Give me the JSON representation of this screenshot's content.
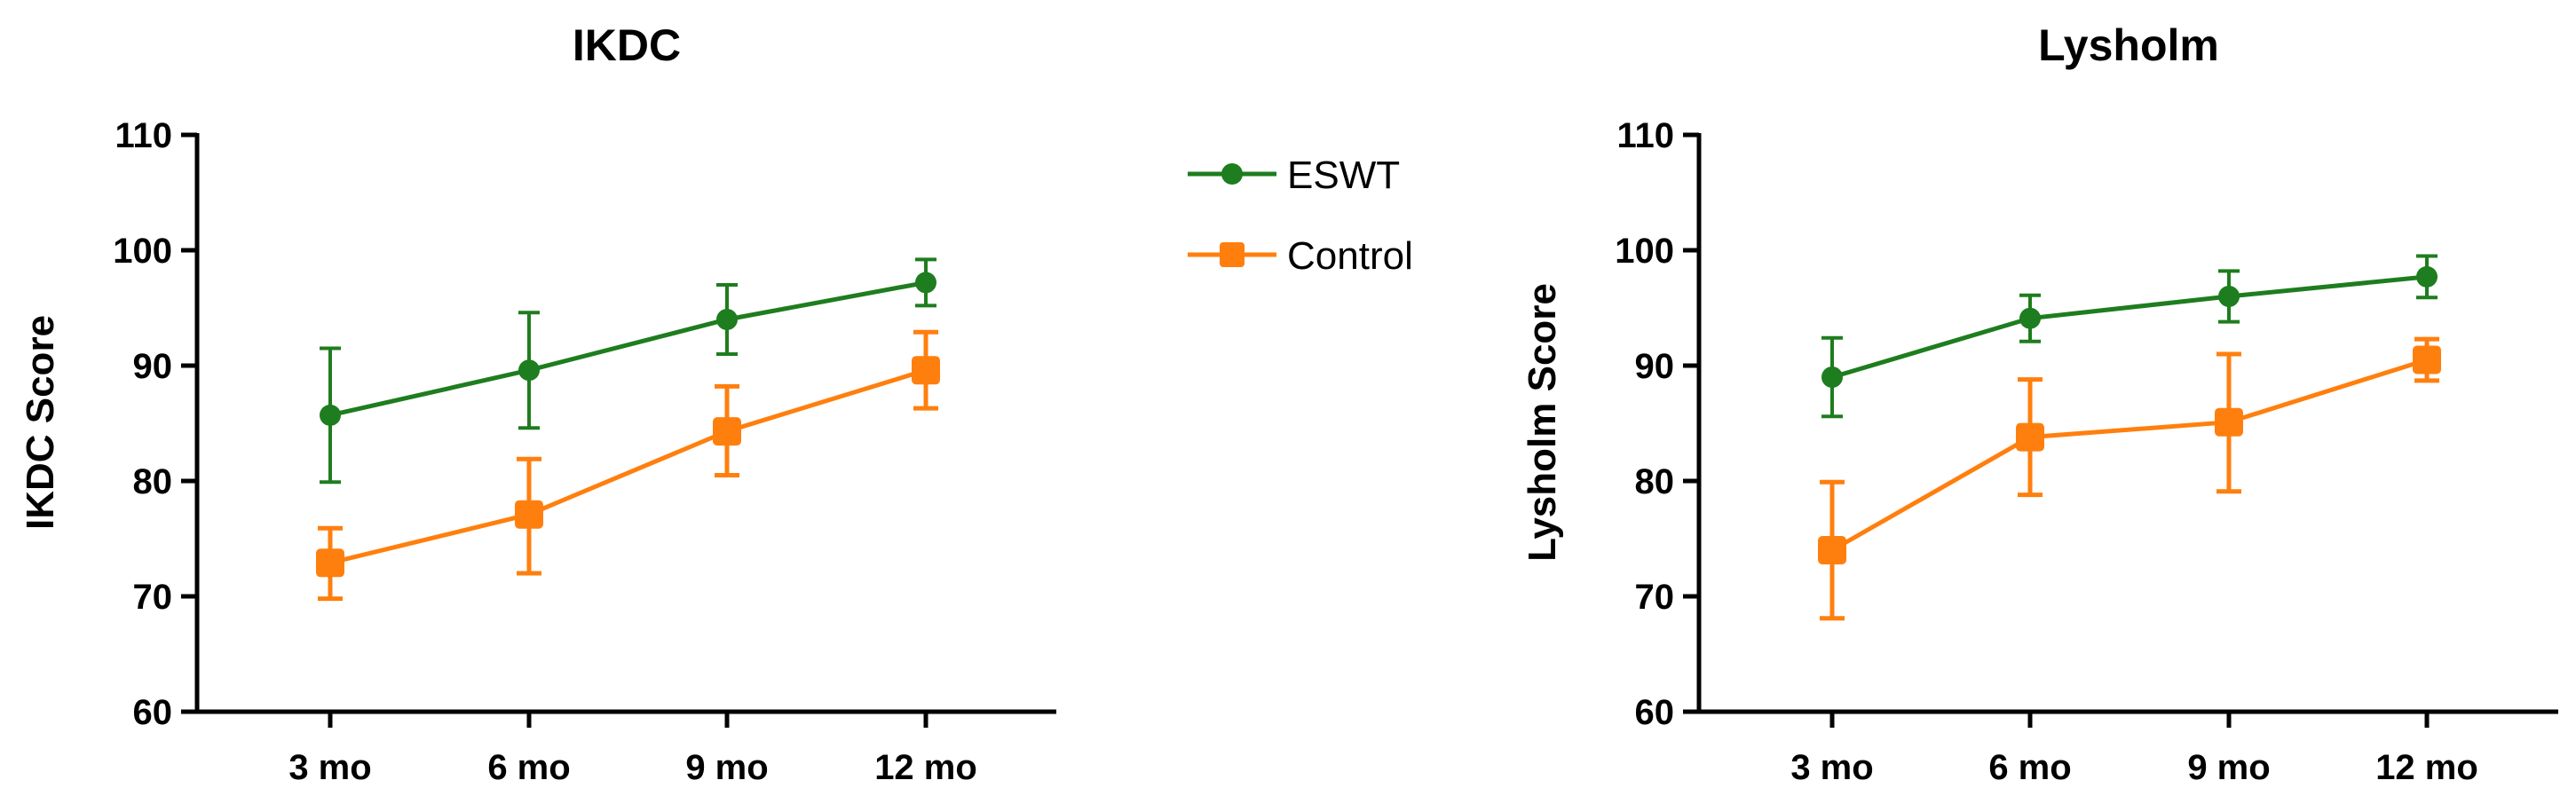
{
  "colors": {
    "eswt": "#1e7d1e",
    "control": "#ff7f0e"
  },
  "legend": [
    {
      "name": "ESWT",
      "color": "#1e7d1e",
      "marker": "circle"
    },
    {
      "name": "Control",
      "color": "#ff7f0e",
      "marker": "square"
    }
  ],
  "chart_data": [
    {
      "type": "line",
      "title": "IKDC",
      "xlabel": "",
      "ylabel": "IKDC Score",
      "categories": [
        "3 mo",
        "6 mo",
        "9 mo",
        "12 mo"
      ],
      "ylim": [
        60,
        110
      ],
      "yticks": [
        60,
        70,
        80,
        90,
        100,
        110
      ],
      "grid": false,
      "series": [
        {
          "name": "ESWT",
          "color": "#1e7d1e",
          "marker": "circle",
          "values": [
            85.7,
            89.6,
            94.0,
            97.2
          ],
          "err_low": [
            79.9,
            84.6,
            91.0,
            95.2
          ],
          "err_high": [
            91.5,
            94.6,
            97.0,
            99.2
          ]
        },
        {
          "name": "Control",
          "color": "#ff7f0e",
          "marker": "square",
          "values": [
            72.9,
            77.1,
            84.3,
            89.6
          ],
          "err_low": [
            69.8,
            72.0,
            80.5,
            86.3
          ],
          "err_high": [
            75.9,
            81.9,
            88.2,
            92.9
          ]
        }
      ]
    },
    {
      "type": "line",
      "title": "Lysholm",
      "xlabel": "",
      "ylabel": "Lysholm Score",
      "categories": [
        "3 mo",
        "6 mo",
        "9 mo",
        "12 mo"
      ],
      "ylim": [
        60,
        110
      ],
      "yticks": [
        60,
        70,
        80,
        90,
        100,
        110
      ],
      "grid": false,
      "series": [
        {
          "name": "ESWT",
          "color": "#1e7d1e",
          "marker": "circle",
          "values": [
            89.0,
            94.1,
            96.0,
            97.7
          ],
          "err_low": [
            85.6,
            92.1,
            93.8,
            95.9
          ],
          "err_high": [
            92.4,
            96.1,
            98.2,
            99.5
          ]
        },
        {
          "name": "Control",
          "color": "#ff7f0e",
          "marker": "square",
          "values": [
            74.0,
            83.8,
            85.1,
            90.5
          ],
          "err_low": [
            68.1,
            78.8,
            79.1,
            88.7
          ],
          "err_high": [
            79.9,
            88.8,
            91.0,
            92.3
          ]
        }
      ]
    }
  ]
}
